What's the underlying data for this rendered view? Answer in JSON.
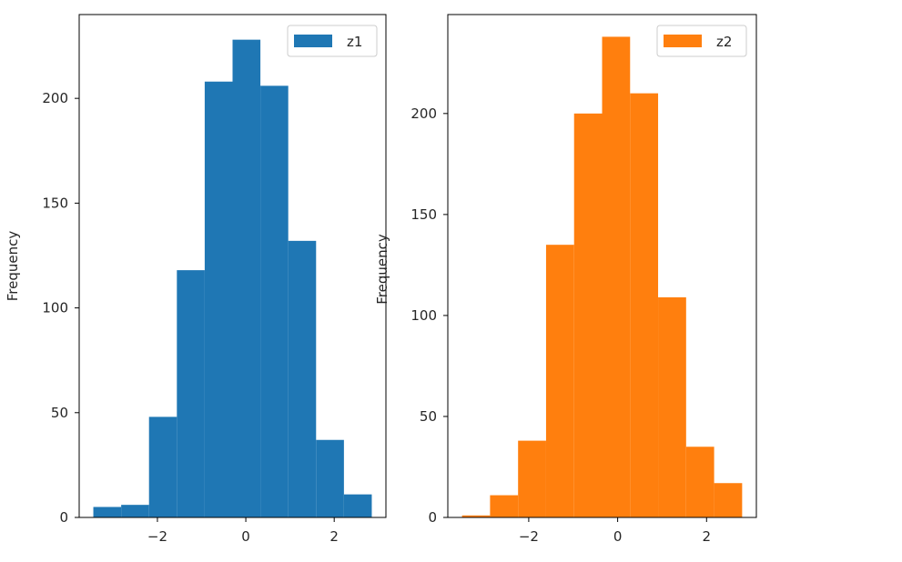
{
  "chart_data": [
    {
      "type": "bar",
      "subtype": "histogram",
      "series_name": "z1",
      "color": "#1f77b4",
      "bins": [
        {
          "left": -3.45,
          "right": -2.82,
          "count": 5
        },
        {
          "left": -2.82,
          "right": -2.19,
          "count": 6
        },
        {
          "left": -2.19,
          "right": -1.56,
          "count": 48
        },
        {
          "left": -1.56,
          "right": -0.93,
          "count": 118
        },
        {
          "left": -0.93,
          "right": -0.3,
          "count": 208
        },
        {
          "left": -0.3,
          "right": 0.33,
          "count": 228
        },
        {
          "left": 0.33,
          "right": 0.96,
          "count": 206
        },
        {
          "left": 0.96,
          "right": 1.59,
          "count": 132
        },
        {
          "left": 1.59,
          "right": 2.22,
          "count": 37
        },
        {
          "left": 2.22,
          "right": 2.85,
          "count": 11
        }
      ],
      "xlim": [
        -3.77,
        3.17
      ],
      "ylim": [
        0,
        240
      ],
      "xticks": [
        -2,
        0,
        2
      ],
      "xtick_labels": [
        "−2",
        "0",
        "2"
      ],
      "yticks": [
        0,
        50,
        100,
        150,
        200
      ],
      "ytick_labels": [
        "0",
        "50",
        "100",
        "150",
        "200"
      ],
      "xlabel": "",
      "ylabel": "Frequency",
      "legend": {
        "labels": [
          "z1"
        ],
        "loc": "upper right"
      }
    },
    {
      "type": "bar",
      "subtype": "histogram",
      "series_name": "z2",
      "color": "#ff7f0e",
      "bins": [
        {
          "left": -3.5,
          "right": -2.87,
          "count": 1
        },
        {
          "left": -2.87,
          "right": -2.24,
          "count": 11
        },
        {
          "left": -2.24,
          "right": -1.61,
          "count": 38
        },
        {
          "left": -1.61,
          "right": -0.98,
          "count": 135
        },
        {
          "left": -0.98,
          "right": -0.35,
          "count": 200
        },
        {
          "left": -0.35,
          "right": 0.28,
          "count": 238
        },
        {
          "left": 0.28,
          "right": 0.91,
          "count": 210
        },
        {
          "left": 0.91,
          "right": 1.54,
          "count": 109
        },
        {
          "left": 1.54,
          "right": 2.17,
          "count": 35
        },
        {
          "left": 2.17,
          "right": 2.8,
          "count": 17
        }
      ],
      "xlim": [
        -3.82,
        3.12
      ],
      "ylim": [
        0,
        249
      ],
      "xticks": [
        -2,
        0,
        2
      ],
      "xtick_labels": [
        "−2",
        "0",
        "2"
      ],
      "yticks": [
        0,
        50,
        100,
        150,
        200
      ],
      "ytick_labels": [
        "0",
        "50",
        "100",
        "150",
        "200"
      ],
      "xlabel": "",
      "ylabel": "Frequency",
      "legend": {
        "labels": [
          "z2"
        ],
        "loc": "upper right"
      }
    }
  ]
}
